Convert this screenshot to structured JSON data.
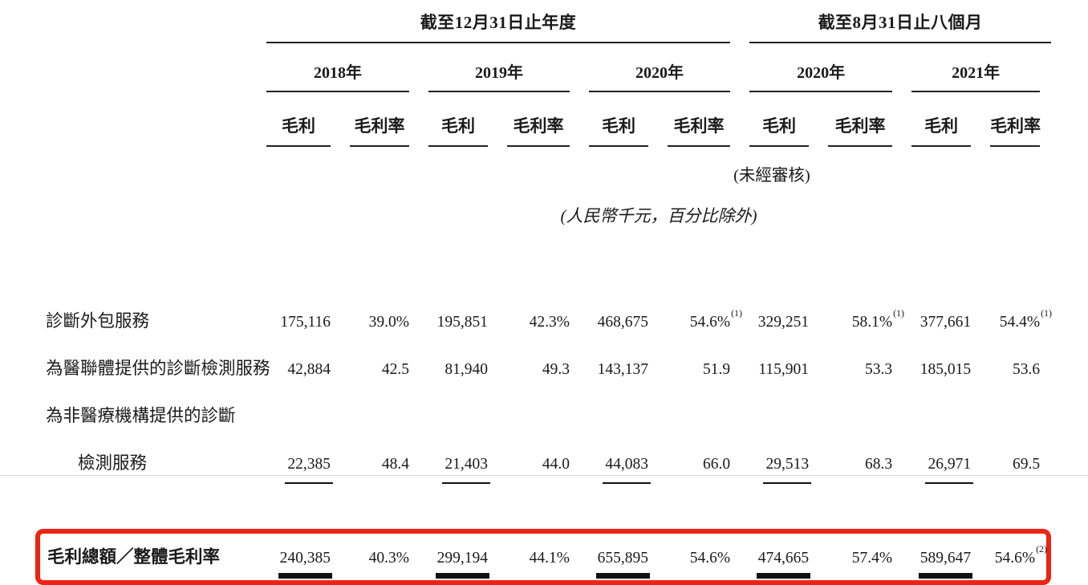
{
  "page": {
    "background_color": "#ffffff",
    "text_color": "#1a1a1a",
    "highlight_box_color": "#ec2415"
  },
  "table": {
    "groups": [
      {
        "title": "截至12月31日止年度",
        "years": [
          "2018年",
          "2019年",
          "2020年"
        ]
      },
      {
        "title": "截至8月31日止八個月",
        "years": [
          "2020年",
          "2021年"
        ]
      }
    ],
    "col_headers": {
      "gp": "毛利",
      "gm": "毛利率"
    },
    "unaudited_note": "(未經審核)",
    "unit_note": "(人民幣千元，百分比除外)",
    "rows": [
      {
        "label": "診斷外包服務",
        "cells": [
          {
            "v": "175,116"
          },
          {
            "v": "39.0%"
          },
          {
            "v": "195,851"
          },
          {
            "v": "42.3%"
          },
          {
            "v": "468,675"
          },
          {
            "v": "54.6%",
            "sup": "(1)"
          },
          {
            "v": "329,251"
          },
          {
            "v": "58.1%",
            "sup": "(1)"
          },
          {
            "v": "377,661"
          },
          {
            "v": "54.4%",
            "sup": "(1)"
          }
        ]
      },
      {
        "label": "為醫聯體提供的診斷檢測服務",
        "cells": [
          {
            "v": "42,884"
          },
          {
            "v": "42.5"
          },
          {
            "v": "81,940"
          },
          {
            "v": "49.3"
          },
          {
            "v": "143,137"
          },
          {
            "v": "51.9"
          },
          {
            "v": "115,901"
          },
          {
            "v": "53.3"
          },
          {
            "v": "185,015"
          },
          {
            "v": "53.6"
          }
        ]
      },
      {
        "label_line1": "為非醫療機構提供的診斷",
        "label_line2": "檢測服務",
        "cells": [
          {
            "v": "22,385"
          },
          {
            "v": "48.4"
          },
          {
            "v": "21,403"
          },
          {
            "v": "44.0"
          },
          {
            "v": "44,083"
          },
          {
            "v": "66.0"
          },
          {
            "v": "29,513"
          },
          {
            "v": "68.3"
          },
          {
            "v": "26,971"
          },
          {
            "v": "69.5"
          }
        ]
      }
    ],
    "total": {
      "label": "毛利總額／整體毛利率",
      "cells": [
        {
          "v": "240,385"
        },
        {
          "v": "40.3%"
        },
        {
          "v": "299,194"
        },
        {
          "v": "44.1%"
        },
        {
          "v": "655,895"
        },
        {
          "v": "54.6%"
        },
        {
          "v": "474,665"
        },
        {
          "v": "57.4%"
        },
        {
          "v": "589,647"
        },
        {
          "v": "54.6%",
          "sup": "(2)"
        }
      ]
    }
  }
}
